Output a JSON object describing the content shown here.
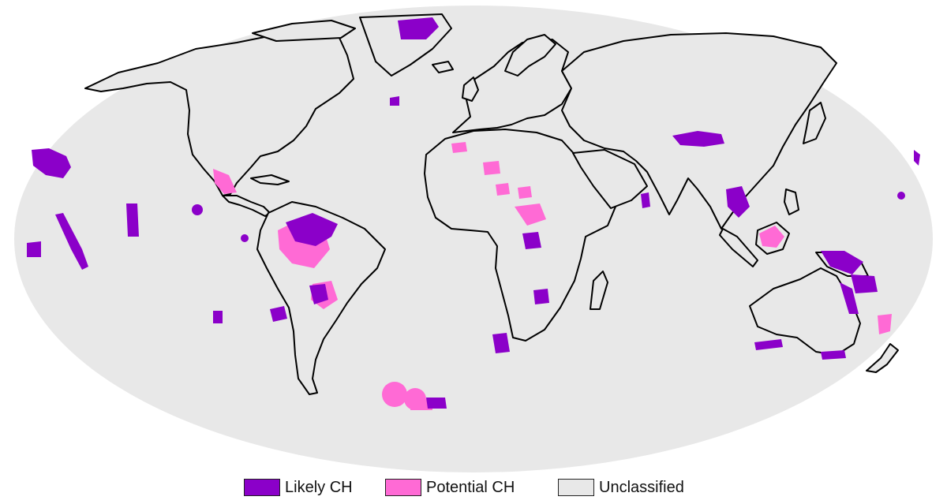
{
  "colors": {
    "ocean": "#e8e8e8",
    "likely_ch": "#8b00c9",
    "potential_ch": "#ff6ad5",
    "unclassified": "#e8e8e8",
    "coastline": "#000000",
    "page_background": "#ffffff"
  },
  "legend": {
    "items": [
      {
        "label": "Likely CH",
        "color": "#8b00c9"
      },
      {
        "label": "Potential CH",
        "color": "#ff6ad5"
      },
      {
        "label": "Unclassified",
        "color": "#e8e8e8"
      }
    ]
  }
}
